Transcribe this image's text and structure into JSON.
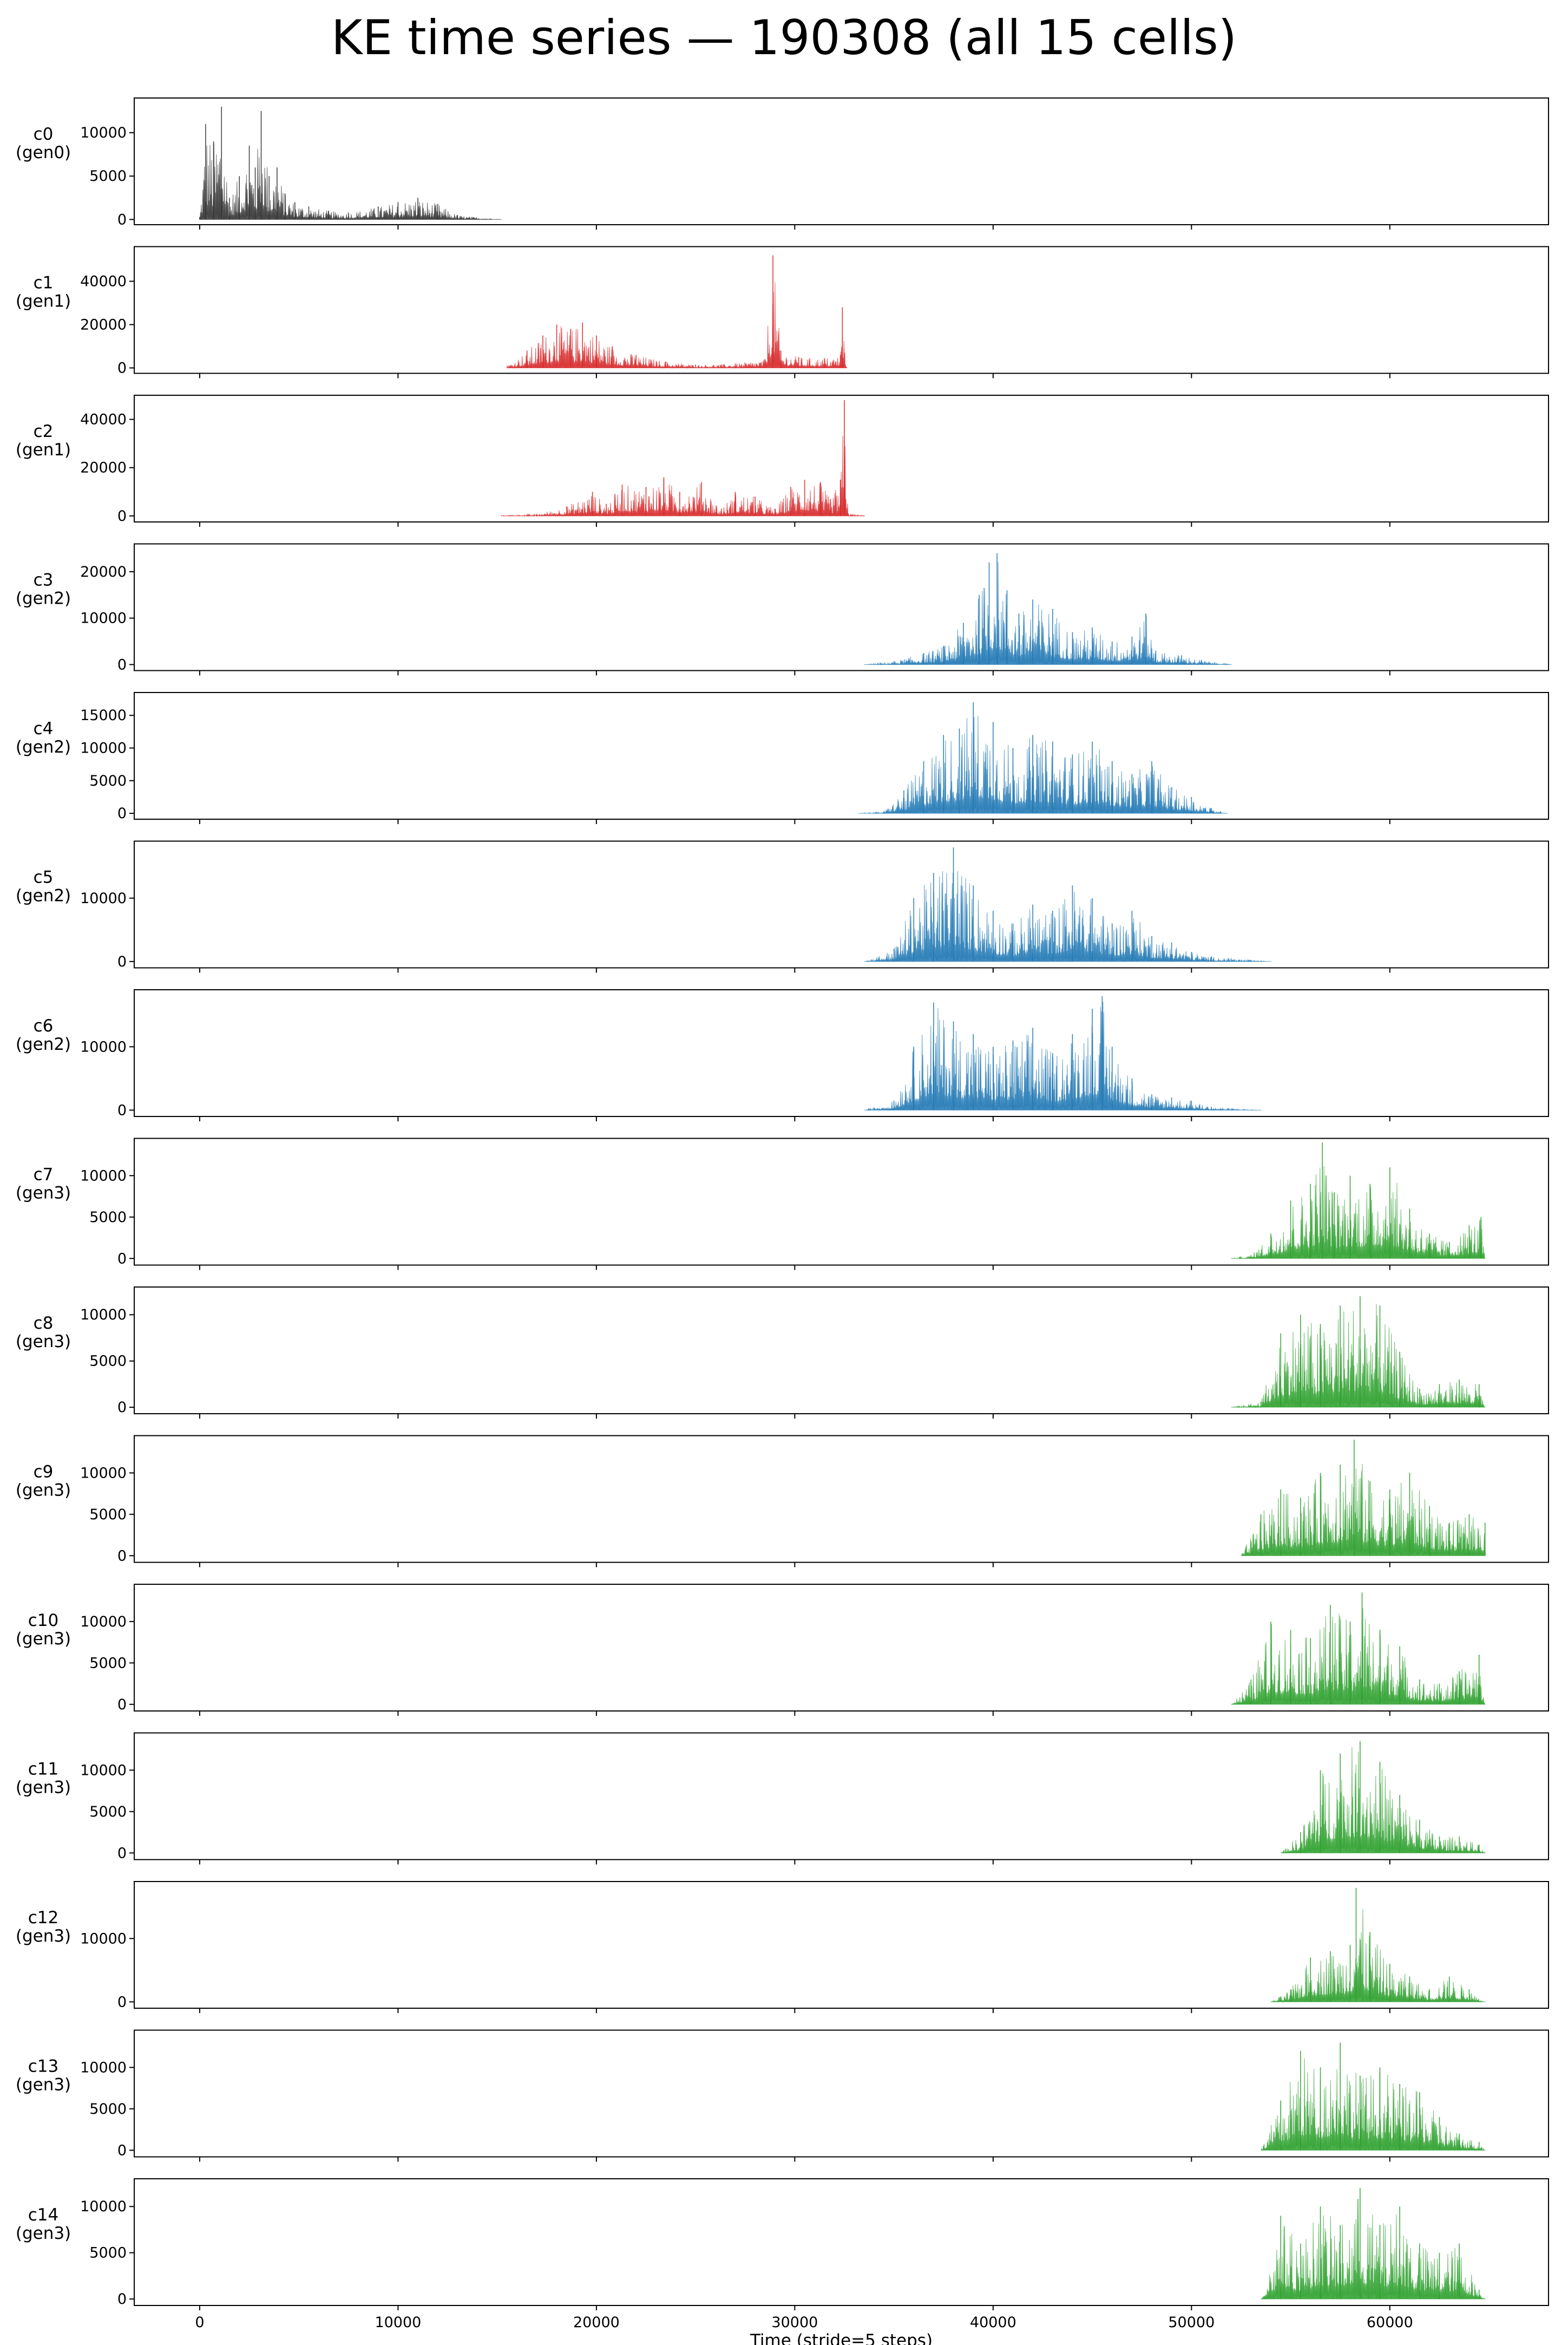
{
  "figure": {
    "title": "KE time series — 190308 (all 15 cells)",
    "xlabel": "Time (stride=5 steps)"
  },
  "chart_data": {
    "type": "area",
    "title": "KE time series — 190308 (all 15 cells)",
    "xlabel": "Time (stride=5 steps)",
    "xlim": [
      -3300,
      68000
    ],
    "xticks": [
      0,
      10000,
      20000,
      30000,
      40000,
      50000,
      60000
    ],
    "xtick_labels": [
      "0",
      "10000",
      "20000",
      "30000",
      "40000",
      "50000",
      "60000"
    ],
    "generation_colors": {
      "gen0": "#333333",
      "gen1": "#d62728",
      "gen2": "#1f77b4",
      "gen3": "#2ca02c"
    },
    "panels": [
      {
        "cell": "c0",
        "gen": "gen0",
        "ylim": [
          -600,
          14000
        ],
        "yticks": [
          0,
          5000,
          10000
        ],
        "peaks": [
          [
            0,
            300
          ],
          [
            300,
            11000
          ],
          [
            700,
            9000
          ],
          [
            1100,
            13000
          ],
          [
            1500,
            2500
          ],
          [
            2000,
            5000
          ],
          [
            2500,
            8500
          ],
          [
            2800,
            6000
          ],
          [
            3100,
            12500
          ],
          [
            3500,
            5000
          ],
          [
            3900,
            6000
          ],
          [
            4300,
            3000
          ],
          [
            4800,
            2000
          ],
          [
            5500,
            1500
          ],
          [
            6500,
            1000
          ],
          [
            7500,
            800
          ],
          [
            9000,
            1500
          ],
          [
            10000,
            2000
          ],
          [
            11000,
            2500
          ],
          [
            12000,
            1800
          ],
          [
            13000,
            500
          ],
          [
            15200,
            0
          ]
        ]
      },
      {
        "cell": "c1",
        "gen": "gen1",
        "ylim": [
          -2500,
          56000
        ],
        "yticks": [
          0,
          20000,
          40000
        ],
        "peaks": [
          [
            15500,
            1000
          ],
          [
            16500,
            8000
          ],
          [
            17300,
            15000
          ],
          [
            18000,
            20000
          ],
          [
            18700,
            18000
          ],
          [
            19300,
            21000
          ],
          [
            20000,
            15000
          ],
          [
            20800,
            10000
          ],
          [
            22000,
            6000
          ],
          [
            23500,
            3000
          ],
          [
            25000,
            1500
          ],
          [
            27000,
            2000
          ],
          [
            28500,
            4000
          ],
          [
            28900,
            52000
          ],
          [
            29300,
            8000
          ],
          [
            30200,
            5000
          ],
          [
            31500,
            4500
          ],
          [
            32300,
            6000
          ],
          [
            32400,
            28000
          ],
          [
            32600,
            500
          ]
        ]
      },
      {
        "cell": "c2",
        "gen": "gen1",
        "ylim": [
          -2500,
          50000
        ],
        "yticks": [
          0,
          20000,
          40000
        ],
        "peaks": [
          [
            15200,
            200
          ],
          [
            17000,
            800
          ],
          [
            18500,
            4000
          ],
          [
            19800,
            10000
          ],
          [
            20500,
            5000
          ],
          [
            21300,
            13000
          ],
          [
            22500,
            12000
          ],
          [
            23400,
            16000
          ],
          [
            24200,
            10000
          ],
          [
            25300,
            14000
          ],
          [
            26300,
            3000
          ],
          [
            27000,
            10000
          ],
          [
            28000,
            8000
          ],
          [
            29000,
            3000
          ],
          [
            29800,
            12000
          ],
          [
            30500,
            15000
          ],
          [
            31300,
            14000
          ],
          [
            31800,
            7000
          ],
          [
            32300,
            15000
          ],
          [
            32500,
            48000
          ],
          [
            32700,
            1000
          ],
          [
            33500,
            200
          ]
        ]
      },
      {
        "cell": "c3",
        "gen": "gen2",
        "ylim": [
          -1300,
          26000
        ],
        "yticks": [
          0,
          10000,
          20000
        ],
        "peaks": [
          [
            33500,
            0
          ],
          [
            35000,
            700
          ],
          [
            36500,
            2500
          ],
          [
            37500,
            4000
          ],
          [
            38500,
            9000
          ],
          [
            39300,
            15000
          ],
          [
            39800,
            22000
          ],
          [
            40200,
            24000
          ],
          [
            40700,
            16000
          ],
          [
            41300,
            11000
          ],
          [
            42000,
            14000
          ],
          [
            43000,
            12000
          ],
          [
            44000,
            7000
          ],
          [
            45000,
            8000
          ],
          [
            46000,
            5000
          ],
          [
            47000,
            6000
          ],
          [
            47700,
            11000
          ],
          [
            48200,
            3000
          ],
          [
            49500,
            2000
          ],
          [
            50500,
            1000
          ],
          [
            52000,
            0
          ]
        ]
      },
      {
        "cell": "c4",
        "gen": "gen2",
        "ylim": [
          -900,
          18500
        ],
        "yticks": [
          0,
          5000,
          10000,
          15000
        ],
        "peaks": [
          [
            33200,
            0
          ],
          [
            34500,
            300
          ],
          [
            35500,
            3500
          ],
          [
            36500,
            8000
          ],
          [
            37500,
            12000
          ],
          [
            38300,
            13000
          ],
          [
            39000,
            17000
          ],
          [
            40000,
            14000
          ],
          [
            41000,
            10000
          ],
          [
            42000,
            12000
          ],
          [
            43000,
            11000
          ],
          [
            44000,
            9000
          ],
          [
            45000,
            11000
          ],
          [
            46000,
            8000
          ],
          [
            47000,
            6000
          ],
          [
            48000,
            8000
          ],
          [
            49000,
            4000
          ],
          [
            50000,
            2500
          ],
          [
            51000,
            800
          ],
          [
            51800,
            0
          ]
        ]
      },
      {
        "cell": "c5",
        "gen": "gen2",
        "ylim": [
          -1000,
          19000
        ],
        "yticks": [
          0,
          10000
        ],
        "peaks": [
          [
            33500,
            0
          ],
          [
            35000,
            2000
          ],
          [
            36000,
            10000
          ],
          [
            37000,
            14000
          ],
          [
            38000,
            18000
          ],
          [
            39000,
            12000
          ],
          [
            40000,
            8000
          ],
          [
            41000,
            6000
          ],
          [
            42000,
            9000
          ],
          [
            43000,
            8000
          ],
          [
            44000,
            12000
          ],
          [
            45000,
            10000
          ],
          [
            46000,
            6000
          ],
          [
            47000,
            8000
          ],
          [
            48000,
            4000
          ],
          [
            49000,
            3000
          ],
          [
            50000,
            1500
          ],
          [
            51000,
            800
          ],
          [
            52000,
            500
          ],
          [
            54000,
            0
          ]
        ]
      },
      {
        "cell": "c6",
        "gen": "gen2",
        "ylim": [
          -1000,
          19000
        ],
        "yticks": [
          0,
          10000
        ],
        "peaks": [
          [
            33500,
            0
          ],
          [
            35000,
            1500
          ],
          [
            36000,
            10000
          ],
          [
            37000,
            17000
          ],
          [
            38000,
            14000
          ],
          [
            39000,
            12000
          ],
          [
            40000,
            10000
          ],
          [
            41000,
            11000
          ],
          [
            42000,
            13000
          ],
          [
            43000,
            9000
          ],
          [
            44000,
            12000
          ],
          [
            45000,
            16000
          ],
          [
            45500,
            18000
          ],
          [
            46000,
            10000
          ],
          [
            47000,
            5000
          ],
          [
            48000,
            2500
          ],
          [
            49000,
            2000
          ],
          [
            50000,
            1500
          ],
          [
            51000,
            500
          ],
          [
            53500,
            0
          ]
        ]
      },
      {
        "cell": "c7",
        "gen": "gen3",
        "ylim": [
          -800,
          14500
        ],
        "yticks": [
          0,
          5000,
          10000
        ],
        "peaks": [
          [
            52000,
            0
          ],
          [
            53000,
            400
          ],
          [
            54000,
            3000
          ],
          [
            55000,
            7000
          ],
          [
            56000,
            9000
          ],
          [
            56600,
            14000
          ],
          [
            57200,
            8000
          ],
          [
            58000,
            10000
          ],
          [
            59000,
            9000
          ],
          [
            60000,
            11000
          ],
          [
            61000,
            6000
          ],
          [
            62000,
            3000
          ],
          [
            63000,
            2000
          ],
          [
            64000,
            4000
          ],
          [
            64600,
            5000
          ],
          [
            64800,
            0
          ]
        ]
      },
      {
        "cell": "c8",
        "gen": "gen3",
        "ylim": [
          -700,
          13000
        ],
        "yticks": [
          0,
          5000,
          10000
        ],
        "peaks": [
          [
            52000,
            0
          ],
          [
            53500,
            600
          ],
          [
            54500,
            8000
          ],
          [
            55500,
            10000
          ],
          [
            56500,
            9000
          ],
          [
            57500,
            11000
          ],
          [
            58500,
            12000
          ],
          [
            59500,
            11000
          ],
          [
            60500,
            6000
          ],
          [
            61500,
            2000
          ],
          [
            62500,
            2500
          ],
          [
            63500,
            3000
          ],
          [
            64500,
            2500
          ],
          [
            64800,
            0
          ]
        ]
      },
      {
        "cell": "c9",
        "gen": "gen3",
        "ylim": [
          -800,
          14500
        ],
        "yticks": [
          0,
          5000,
          10000
        ],
        "peaks": [
          [
            52500,
            0
          ],
          [
            53500,
            5000
          ],
          [
            54500,
            8000
          ],
          [
            55500,
            7000
          ],
          [
            56500,
            10000
          ],
          [
            57500,
            11000
          ],
          [
            58200,
            14000
          ],
          [
            59000,
            9000
          ],
          [
            60000,
            8000
          ],
          [
            61000,
            10000
          ],
          [
            62000,
            6000
          ],
          [
            63000,
            4000
          ],
          [
            64000,
            5000
          ],
          [
            64800,
            4000
          ]
        ]
      },
      {
        "cell": "c10",
        "gen": "gen3",
        "ylim": [
          -800,
          14500
        ],
        "yticks": [
          0,
          5000,
          10000
        ],
        "peaks": [
          [
            52000,
            0
          ],
          [
            53000,
            3000
          ],
          [
            54000,
            10000
          ],
          [
            55000,
            9000
          ],
          [
            56000,
            8000
          ],
          [
            57000,
            12000
          ],
          [
            58000,
            10000
          ],
          [
            58600,
            13500
          ],
          [
            59500,
            9000
          ],
          [
            60500,
            7000
          ],
          [
            61500,
            3000
          ],
          [
            62500,
            2500
          ],
          [
            63500,
            4000
          ],
          [
            64500,
            6000
          ],
          [
            64800,
            0
          ]
        ]
      },
      {
        "cell": "c11",
        "gen": "gen3",
        "ylim": [
          -800,
          14500
        ],
        "yticks": [
          0,
          5000,
          10000
        ],
        "peaks": [
          [
            54500,
            0
          ],
          [
            55500,
            2500
          ],
          [
            56500,
            10000
          ],
          [
            57500,
            12000
          ],
          [
            58500,
            13500
          ],
          [
            59500,
            11000
          ],
          [
            60500,
            7000
          ],
          [
            61500,
            4000
          ],
          [
            62500,
            2000
          ],
          [
            63500,
            2000
          ],
          [
            64500,
            1000
          ],
          [
            64800,
            0
          ]
        ]
      },
      {
        "cell": "c12",
        "gen": "gen3",
        "ylim": [
          -1000,
          19000
        ],
        "yticks": [
          0,
          10000
        ],
        "peaks": [
          [
            54000,
            0
          ],
          [
            55000,
            2000
          ],
          [
            56000,
            7000
          ],
          [
            57000,
            8000
          ],
          [
            58000,
            9000
          ],
          [
            58300,
            18000
          ],
          [
            59000,
            11000
          ],
          [
            60000,
            6000
          ],
          [
            61000,
            4000
          ],
          [
            62000,
            2000
          ],
          [
            63000,
            4000
          ],
          [
            64000,
            2000
          ],
          [
            64800,
            0
          ]
        ]
      },
      {
        "cell": "c13",
        "gen": "gen3",
        "ylim": [
          -800,
          14500
        ],
        "yticks": [
          0,
          5000,
          10000
        ],
        "peaks": [
          [
            53500,
            0
          ],
          [
            54500,
            6000
          ],
          [
            55500,
            12000
          ],
          [
            56500,
            10000
          ],
          [
            57500,
            13000
          ],
          [
            58500,
            9000
          ],
          [
            59500,
            10000
          ],
          [
            60500,
            8000
          ],
          [
            61500,
            7000
          ],
          [
            62500,
            4000
          ],
          [
            63500,
            2000
          ],
          [
            64500,
            1000
          ],
          [
            64800,
            0
          ]
        ]
      },
      {
        "cell": "c14",
        "gen": "gen3",
        "ylim": [
          -700,
          13000
        ],
        "yticks": [
          0,
          5000,
          10000
        ],
        "peaks": [
          [
            53500,
            0
          ],
          [
            54500,
            9000
          ],
          [
            55500,
            6000
          ],
          [
            56500,
            10000
          ],
          [
            57500,
            8000
          ],
          [
            58500,
            12000
          ],
          [
            59500,
            8000
          ],
          [
            60500,
            10000
          ],
          [
            61500,
            6000
          ],
          [
            62500,
            5000
          ],
          [
            63500,
            6000
          ],
          [
            64500,
            1000
          ],
          [
            64800,
            0
          ]
        ]
      }
    ]
  }
}
